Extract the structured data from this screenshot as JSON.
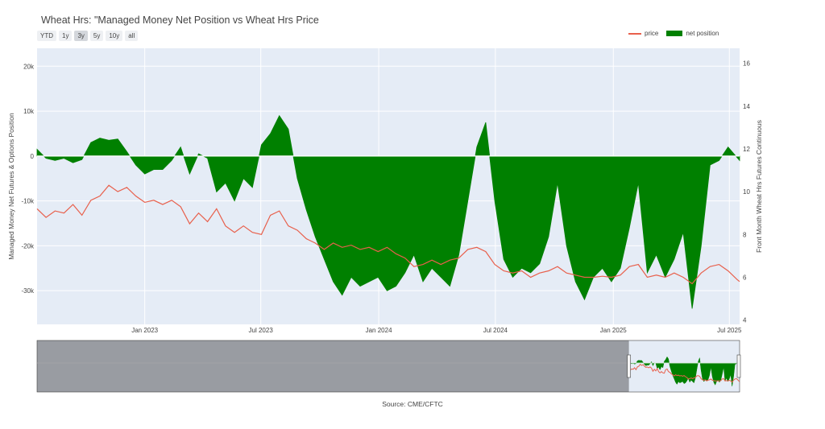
{
  "chart_data": {
    "type": "area",
    "title": "Wheat Hrs: \"Managed Money Net Position vs Wheat Hrs Price",
    "range_buttons": [
      "YTD",
      "1y",
      "3y",
      "5y",
      "10y",
      "all"
    ],
    "active_range": "3y",
    "legend": {
      "placement": "top-right"
    },
    "yaxis_left": {
      "label": "Managed Money Net Futures & Options Position",
      "range": [
        -37500,
        24000
      ],
      "ticks": [
        20000,
        10000,
        0,
        -10000,
        -20000,
        -30000
      ],
      "tick_labels": [
        "20k",
        "10k",
        "0",
        "-10k",
        "-20k",
        "-30k"
      ]
    },
    "yaxis_right": {
      "label": "Front Month Wheat Hrs Futures Continuous",
      "range": [
        3.8,
        16.7
      ],
      "ticks": [
        4,
        6,
        8,
        10,
        12,
        14,
        16
      ],
      "tick_labels": [
        "4",
        "6",
        "8",
        "10",
        "12",
        "14",
        "16"
      ]
    },
    "xaxis": {
      "range": [
        "2022-07-17",
        "2025-07-17"
      ],
      "ticks": [
        "2023-01-01",
        "2023-07-01",
        "2024-01-01",
        "2024-07-01",
        "2025-01-01",
        "2025-07-01"
      ],
      "tick_labels": [
        "Jan 2023",
        "Jul 2023",
        "Jan 2024",
        "Jul 2024",
        "Jan 2025",
        "Jul 2025"
      ]
    },
    "grid": true,
    "series": [
      {
        "name": "price",
        "axis": "right",
        "color": "#e8604c",
        "style": "line",
        "points": [
          [
            "2022-07-17",
            9.2
          ],
          [
            "2022-07-31",
            8.8
          ],
          [
            "2022-08-14",
            9.1
          ],
          [
            "2022-08-28",
            9.0
          ],
          [
            "2022-09-11",
            9.4
          ],
          [
            "2022-09-25",
            8.9
          ],
          [
            "2022-10-09",
            9.6
          ],
          [
            "2022-10-23",
            9.8
          ],
          [
            "2022-11-06",
            10.3
          ],
          [
            "2022-11-20",
            10.0
          ],
          [
            "2022-12-04",
            10.2
          ],
          [
            "2022-12-18",
            9.8
          ],
          [
            "2023-01-01",
            9.5
          ],
          [
            "2023-01-15",
            9.6
          ],
          [
            "2023-01-29",
            9.4
          ],
          [
            "2023-02-12",
            9.6
          ],
          [
            "2023-02-26",
            9.3
          ],
          [
            "2023-03-12",
            8.5
          ],
          [
            "2023-03-26",
            9.0
          ],
          [
            "2023-04-09",
            8.6
          ],
          [
            "2023-04-23",
            9.2
          ],
          [
            "2023-05-07",
            8.4
          ],
          [
            "2023-05-21",
            8.1
          ],
          [
            "2023-06-04",
            8.4
          ],
          [
            "2023-06-18",
            8.1
          ],
          [
            "2023-07-02",
            8.0
          ],
          [
            "2023-07-16",
            8.9
          ],
          [
            "2023-07-30",
            9.1
          ],
          [
            "2023-08-13",
            8.4
          ],
          [
            "2023-08-27",
            8.2
          ],
          [
            "2023-09-10",
            7.8
          ],
          [
            "2023-09-24",
            7.6
          ],
          [
            "2023-10-08",
            7.3
          ],
          [
            "2023-10-22",
            7.6
          ],
          [
            "2023-11-05",
            7.4
          ],
          [
            "2023-11-19",
            7.5
          ],
          [
            "2023-12-03",
            7.3
          ],
          [
            "2023-12-17",
            7.4
          ],
          [
            "2023-12-31",
            7.2
          ],
          [
            "2024-01-14",
            7.4
          ],
          [
            "2024-01-28",
            7.1
          ],
          [
            "2024-02-11",
            6.9
          ],
          [
            "2024-02-25",
            6.5
          ],
          [
            "2024-03-10",
            6.6
          ],
          [
            "2024-03-24",
            6.8
          ],
          [
            "2024-04-07",
            6.6
          ],
          [
            "2024-04-21",
            6.8
          ],
          [
            "2024-05-05",
            6.9
          ],
          [
            "2024-05-19",
            7.3
          ],
          [
            "2024-06-02",
            7.4
          ],
          [
            "2024-06-16",
            7.2
          ],
          [
            "2024-06-30",
            6.6
          ],
          [
            "2024-07-14",
            6.3
          ],
          [
            "2024-07-28",
            6.2
          ],
          [
            "2024-08-11",
            6.3
          ],
          [
            "2024-08-25",
            6.0
          ],
          [
            "2024-09-08",
            6.2
          ],
          [
            "2024-09-22",
            6.3
          ],
          [
            "2024-10-06",
            6.5
          ],
          [
            "2024-10-20",
            6.2
          ],
          [
            "2024-11-03",
            6.1
          ],
          [
            "2024-11-17",
            6.0
          ],
          [
            "2024-12-01",
            6.0
          ],
          [
            "2024-12-15",
            6.05
          ],
          [
            "2024-12-29",
            6.0
          ],
          [
            "2025-01-12",
            6.1
          ],
          [
            "2025-01-26",
            6.5
          ],
          [
            "2025-02-09",
            6.6
          ],
          [
            "2025-02-23",
            6.0
          ],
          [
            "2025-03-09",
            6.1
          ],
          [
            "2025-03-23",
            6.0
          ],
          [
            "2025-04-06",
            6.2
          ],
          [
            "2025-04-20",
            6.0
          ],
          [
            "2025-05-04",
            5.7
          ],
          [
            "2025-05-18",
            6.2
          ],
          [
            "2025-06-01",
            6.5
          ],
          [
            "2025-06-15",
            6.6
          ],
          [
            "2025-06-29",
            6.3
          ],
          [
            "2025-07-13",
            5.9
          ],
          [
            "2025-07-17",
            5.8
          ]
        ]
      },
      {
        "name": "net position",
        "axis": "left",
        "color": "#008000",
        "style": "area",
        "points": [
          [
            "2022-07-17",
            1500
          ],
          [
            "2022-07-31",
            -500
          ],
          [
            "2022-08-14",
            -1000
          ],
          [
            "2022-08-28",
            -500
          ],
          [
            "2022-09-11",
            -1500
          ],
          [
            "2022-09-25",
            -800
          ],
          [
            "2022-10-09",
            3000
          ],
          [
            "2022-10-23",
            4000
          ],
          [
            "2022-11-06",
            3500
          ],
          [
            "2022-11-20",
            3800
          ],
          [
            "2022-12-04",
            1000
          ],
          [
            "2022-12-18",
            -2000
          ],
          [
            "2023-01-01",
            -4000
          ],
          [
            "2023-01-15",
            -3000
          ],
          [
            "2023-01-29",
            -3000
          ],
          [
            "2023-02-12",
            -1000
          ],
          [
            "2023-02-26",
            2000
          ],
          [
            "2023-03-12",
            -4000
          ],
          [
            "2023-03-26",
            500
          ],
          [
            "2023-04-09",
            -500
          ],
          [
            "2023-04-23",
            -8000
          ],
          [
            "2023-05-07",
            -6000
          ],
          [
            "2023-05-21",
            -10000
          ],
          [
            "2023-06-04",
            -5000
          ],
          [
            "2023-06-18",
            -7000
          ],
          [
            "2023-07-02",
            2500
          ],
          [
            "2023-07-16",
            5000
          ],
          [
            "2023-07-30",
            9000
          ],
          [
            "2023-08-13",
            6000
          ],
          [
            "2023-08-27",
            -5000
          ],
          [
            "2023-09-10",
            -12000
          ],
          [
            "2023-09-24",
            -18000
          ],
          [
            "2023-10-08",
            -23000
          ],
          [
            "2023-10-22",
            -28000
          ],
          [
            "2023-11-05",
            -31000
          ],
          [
            "2023-11-19",
            -27000
          ],
          [
            "2023-12-03",
            -29000
          ],
          [
            "2023-12-17",
            -28000
          ],
          [
            "2023-12-31",
            -27000
          ],
          [
            "2024-01-14",
            -30000
          ],
          [
            "2024-01-28",
            -29000
          ],
          [
            "2024-02-11",
            -26000
          ],
          [
            "2024-02-25",
            -22000
          ],
          [
            "2024-03-10",
            -28000
          ],
          [
            "2024-03-24",
            -25000
          ],
          [
            "2024-04-07",
            -27000
          ],
          [
            "2024-04-21",
            -29000
          ],
          [
            "2024-05-05",
            -22000
          ],
          [
            "2024-05-19",
            -10000
          ],
          [
            "2024-06-02",
            2000
          ],
          [
            "2024-06-16",
            7500
          ],
          [
            "2024-06-30",
            -10000
          ],
          [
            "2024-07-14",
            -23000
          ],
          [
            "2024-07-28",
            -27000
          ],
          [
            "2024-08-11",
            -25000
          ],
          [
            "2024-08-25",
            -26000
          ],
          [
            "2024-09-08",
            -24000
          ],
          [
            "2024-09-22",
            -18000
          ],
          [
            "2024-10-06",
            -6000
          ],
          [
            "2024-10-20",
            -20000
          ],
          [
            "2024-11-03",
            -28000
          ],
          [
            "2024-11-17",
            -32000
          ],
          [
            "2024-12-01",
            -27000
          ],
          [
            "2024-12-15",
            -25000
          ],
          [
            "2024-12-29",
            -28000
          ],
          [
            "2025-01-12",
            -25000
          ],
          [
            "2025-01-26",
            -16000
          ],
          [
            "2025-02-09",
            -6000
          ],
          [
            "2025-02-23",
            -26000
          ],
          [
            "2025-03-09",
            -22000
          ],
          [
            "2025-03-23",
            -27000
          ],
          [
            "2025-04-06",
            -23000
          ],
          [
            "2025-04-20",
            -17000
          ],
          [
            "2025-05-04",
            -34000
          ],
          [
            "2025-05-18",
            -20000
          ],
          [
            "2025-06-01",
            -2000
          ],
          [
            "2025-06-15",
            -1000
          ],
          [
            "2025-06-29",
            2000
          ],
          [
            "2025-07-17",
            -1000
          ]
        ]
      }
    ],
    "range_slider": {
      "window": [
        "2022-07-17",
        "2025-07-17"
      ],
      "range": [
        "2006-07-01",
        "2025-07-17"
      ]
    },
    "source": "Source: CME/CFTC"
  }
}
